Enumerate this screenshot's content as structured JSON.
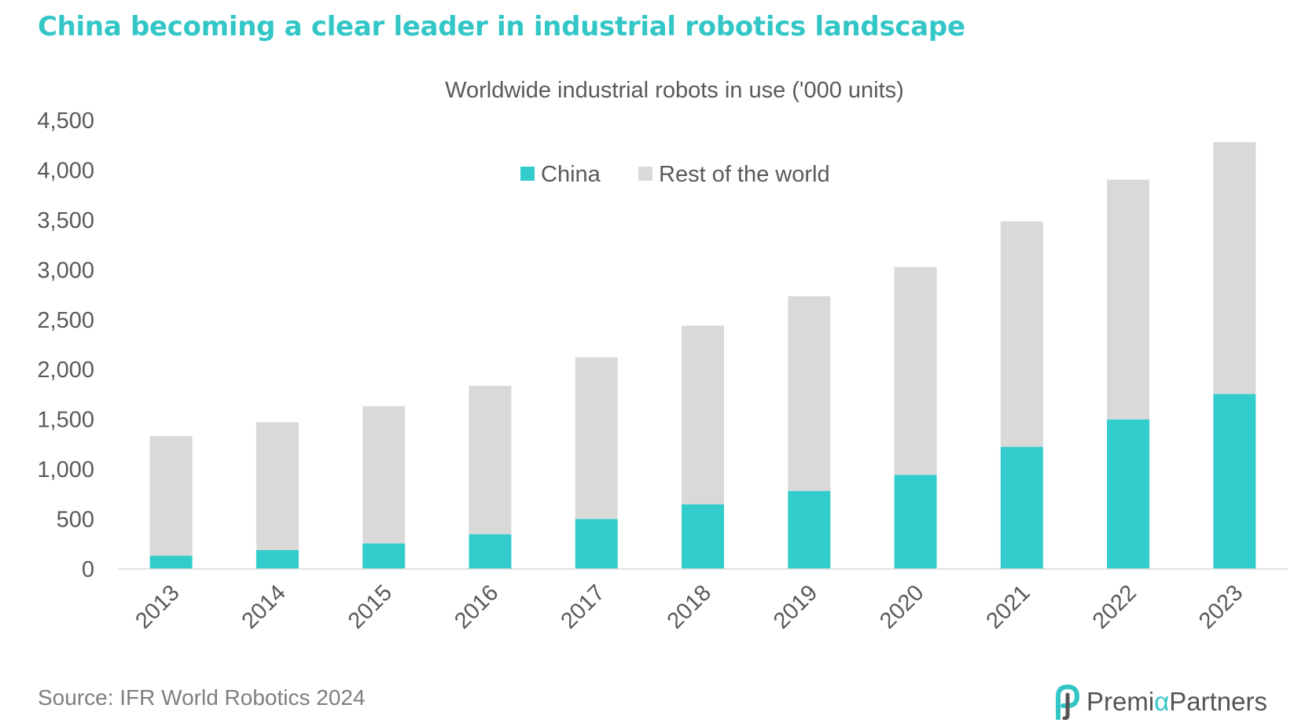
{
  "headline": "China becoming a clear leader in industrial robotics landscape",
  "source": "Source: IFR World Robotics 2024",
  "logo": {
    "before": "Premi",
    "accent": "α",
    "after": "Partners"
  },
  "colors": {
    "china": "#33cccc",
    "rest": "#d9d9d9",
    "headline": "#33c6c6",
    "text": "#595959",
    "axis": "#d9d9d9"
  },
  "chart_data": {
    "type": "bar",
    "stacked": true,
    "title": "Worldwide industrial robots in use ('000 units)",
    "xlabel": "",
    "ylabel": "",
    "categories": [
      "2013",
      "2014",
      "2015",
      "2016",
      "2017",
      "2018",
      "2019",
      "2020",
      "2021",
      "2022",
      "2023"
    ],
    "series": [
      {
        "name": "China",
        "color": "#33cccc",
        "values": [
          133,
          189,
          256,
          349,
          501,
          649,
          783,
          944,
          1225,
          1500,
          1755
        ]
      },
      {
        "name": "Rest of the world",
        "color": "#d9d9d9",
        "values": [
          1199,
          1283,
          1377,
          1488,
          1622,
          1791,
          1952,
          2085,
          2260,
          2404,
          2526
        ]
      }
    ],
    "ylim": [
      0,
      4500
    ],
    "yticks": [
      0,
      500,
      1000,
      1500,
      2000,
      2500,
      3000,
      3500,
      4000,
      4500
    ],
    "ytick_labels": [
      "0",
      "500",
      "1,000",
      "1,500",
      "2,000",
      "2,500",
      "3,000",
      "3,500",
      "4,000",
      "4,500"
    ],
    "grid": false,
    "legend": "top-center"
  }
}
